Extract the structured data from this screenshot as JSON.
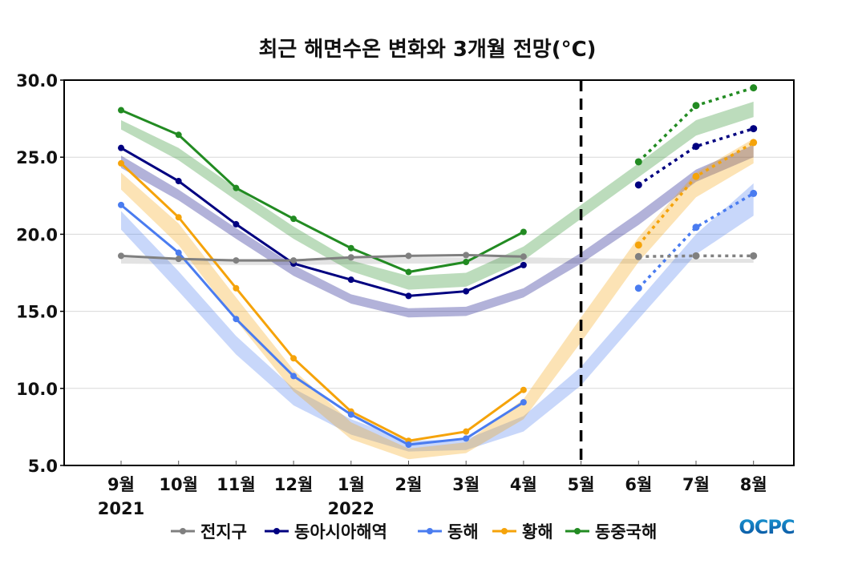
{
  "chart_data": {
    "type": "line",
    "title": "최근 해면수온 변화와 3개월 전망(°C)",
    "xlabel": "",
    "ylabel": "",
    "categories": [
      "9월",
      "10월",
      "11월",
      "12월",
      "1월",
      "2월",
      "3월",
      "4월",
      "5월",
      "6월",
      "7월",
      "8월"
    ],
    "year_labels": [
      {
        "index": 0,
        "text": "2021"
      },
      {
        "index": 4,
        "text": "2022"
      }
    ],
    "yticks": [
      "5.0",
      "10.0",
      "15.0",
      "20.0",
      "25.0",
      "30.0"
    ],
    "ylim": [
      5,
      30
    ],
    "grid": "horizontal",
    "forecast_divider_at": "5월",
    "legend_position": "bottom",
    "series": [
      {
        "name": "전지구",
        "color": "#808080",
        "observed": [
          18.6,
          18.4,
          18.3,
          18.3,
          18.5,
          18.6,
          18.65,
          18.55,
          null,
          null,
          null,
          null
        ],
        "forecast": [
          null,
          null,
          null,
          null,
          null,
          null,
          null,
          null,
          null,
          18.55,
          18.6,
          18.6
        ],
        "climatology_range": [
          [
            18.1,
            18.5
          ],
          [
            18.05,
            18.45
          ],
          [
            18.0,
            18.4
          ],
          [
            18.0,
            18.4
          ],
          [
            18.05,
            18.45
          ],
          [
            18.1,
            18.5
          ],
          [
            18.1,
            18.5
          ],
          [
            18.1,
            18.5
          ],
          [
            18.1,
            18.45
          ],
          [
            18.1,
            18.4
          ],
          [
            18.15,
            18.4
          ],
          [
            18.15,
            18.4
          ]
        ]
      },
      {
        "name": "동아시아해역",
        "color": "#000080",
        "observed": [
          25.6,
          23.45,
          20.65,
          18.1,
          17.05,
          16.0,
          16.3,
          18.0,
          null,
          null,
          null,
          null
        ],
        "forecast": [
          null,
          null,
          null,
          null,
          null,
          null,
          null,
          null,
          null,
          23.2,
          25.7,
          26.85
        ],
        "climatology_range": [
          [
            24.3,
            25.1
          ],
          [
            22.2,
            22.9
          ],
          [
            19.7,
            20.4
          ],
          [
            17.3,
            18.0
          ],
          [
            15.5,
            16.1
          ],
          [
            14.6,
            15.2
          ],
          [
            14.7,
            15.3
          ],
          [
            15.9,
            16.5
          ],
          [
            18.1,
            18.8
          ],
          [
            20.6,
            21.4
          ],
          [
            23.4,
            24.2
          ],
          [
            25.0,
            25.8
          ]
        ]
      },
      {
        "name": "동해",
        "color": "#4a7cf0",
        "observed": [
          21.9,
          18.8,
          14.5,
          10.8,
          8.3,
          6.35,
          6.75,
          9.1,
          null,
          null,
          null,
          null
        ],
        "forecast": [
          null,
          null,
          null,
          null,
          null,
          null,
          null,
          null,
          null,
          16.5,
          20.45,
          22.65
        ],
        "climatology_range": [
          [
            20.3,
            21.5
          ],
          [
            16.3,
            17.6
          ],
          [
            12.2,
            13.4
          ],
          [
            8.9,
            10.0
          ],
          [
            7.0,
            8.0
          ],
          [
            5.9,
            6.6
          ],
          [
            6.0,
            6.7
          ],
          [
            7.2,
            8.2
          ],
          [
            10.2,
            11.4
          ],
          [
            14.5,
            15.7
          ],
          [
            18.7,
            20.0
          ],
          [
            21.2,
            23.3
          ]
        ]
      },
      {
        "name": "황해",
        "color": "#f5a30a",
        "observed": [
          24.6,
          21.1,
          16.5,
          11.95,
          8.5,
          6.6,
          7.2,
          9.9,
          null,
          null,
          null,
          null
        ],
        "forecast": [
          null,
          null,
          null,
          null,
          null,
          null,
          null,
          null,
          null,
          19.3,
          23.75,
          25.95
        ],
        "climatology_range": [
          [
            22.9,
            24.0
          ],
          [
            19.3,
            20.7
          ],
          [
            14.4,
            15.9
          ],
          [
            9.8,
            11.2
          ],
          [
            6.7,
            7.8
          ],
          [
            5.4,
            6.1
          ],
          [
            5.8,
            6.5
          ],
          [
            8.0,
            9.3
          ],
          [
            13.0,
            14.6
          ],
          [
            18.2,
            19.8
          ],
          [
            22.4,
            24.0
          ],
          [
            24.6,
            26.2
          ]
        ]
      },
      {
        "name": "동중국해",
        "color": "#228b22",
        "observed": [
          28.05,
          26.45,
          23.0,
          21.0,
          19.1,
          17.55,
          18.2,
          20.15,
          null,
          null,
          null,
          null
        ],
        "forecast": [
          null,
          null,
          null,
          null,
          null,
          null,
          null,
          null,
          null,
          24.7,
          28.35,
          29.5
        ],
        "climatology_range": [
          [
            26.8,
            27.4
          ],
          [
            24.8,
            25.6
          ],
          [
            22.2,
            23.0
          ],
          [
            19.7,
            20.5
          ],
          [
            17.6,
            18.3
          ],
          [
            16.4,
            17.3
          ],
          [
            16.6,
            17.5
          ],
          [
            18.3,
            19.2
          ],
          [
            21.0,
            21.9
          ],
          [
            23.7,
            24.6
          ],
          [
            26.4,
            27.4
          ],
          [
            27.6,
            28.6
          ]
        ]
      }
    ]
  },
  "logo": {
    "text": "OCPC",
    "colors": [
      "#1a9ad6",
      "#0a4f9c"
    ]
  }
}
